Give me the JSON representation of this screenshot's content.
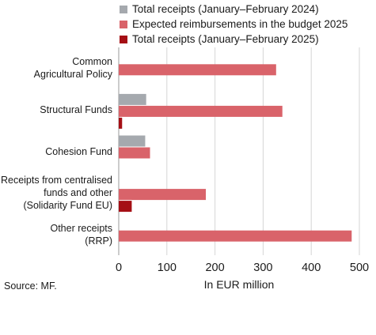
{
  "chart_data": {
    "type": "bar",
    "orientation": "horizontal",
    "categories": [
      "Common\nAgricultural Policy",
      "Structural Funds",
      "Cohesion Fund",
      "Receipts from centralised\nfunds and other\n(Solidarity Fund EU)",
      "Other receipts\n(RRP)"
    ],
    "series": [
      {
        "name": "Total receipts (January–February 2024)",
        "color": "#a5a9ae",
        "values": [
          0,
          57,
          55,
          0,
          0
        ]
      },
      {
        "name": "Expected reimbursements in the budget 2025",
        "color": "#d9636a",
        "values": [
          327,
          340,
          65,
          181,
          484
        ]
      },
      {
        "name": "Total receipts (January–February 2025)",
        "color": "#a50f15",
        "values": [
          0,
          7,
          0,
          27,
          0
        ]
      }
    ],
    "xlabel": "In EUR million",
    "xlim": [
      0,
      500
    ],
    "xticks": [
      "0",
      "100",
      "200",
      "300",
      "400",
      "500"
    ],
    "grid": true,
    "legend_position": "top"
  },
  "source": "Source: MF."
}
